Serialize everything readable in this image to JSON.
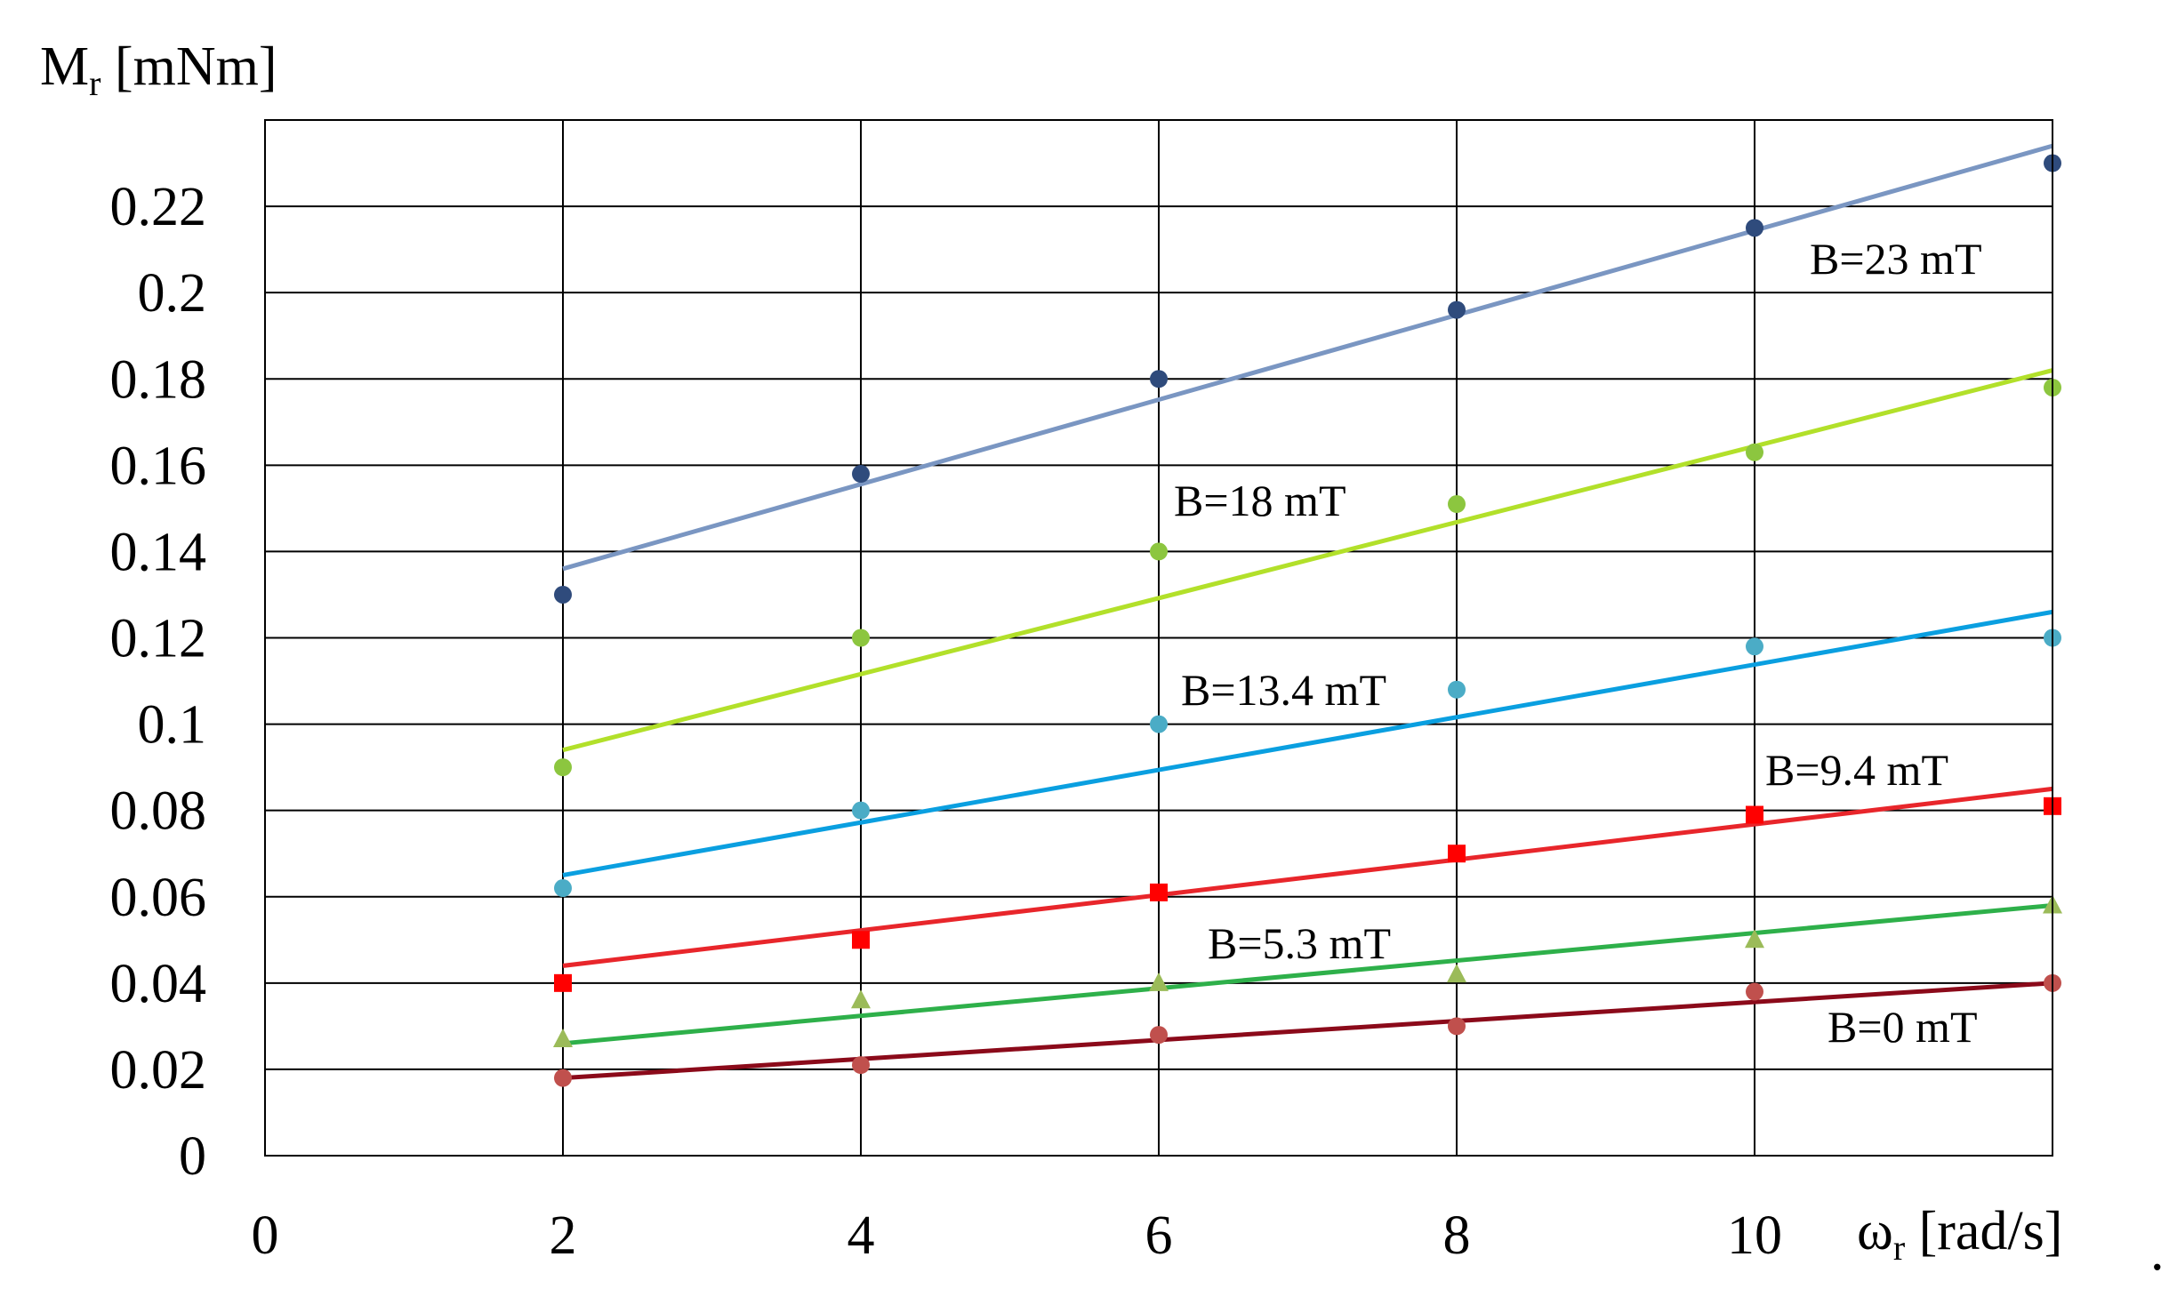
{
  "chart_data": {
    "type": "scatter",
    "xlabel": "ωr [rad/s]",
    "ylabel": "Mr [mNm]",
    "xlim": [
      0,
      12
    ],
    "ylim": [
      0,
      0.24
    ],
    "xticks": [
      0,
      2,
      4,
      6,
      8,
      10
    ],
    "yticks": [
      0,
      0.02,
      0.04,
      0.06,
      0.08,
      0.1,
      0.12,
      0.14,
      0.16,
      0.18,
      0.2,
      0.22
    ],
    "grid": true,
    "trailing_mark": ".",
    "series": [
      {
        "name": "B=23 mT",
        "marker_color": "#2f4b7c",
        "line_color": "#7a96c2",
        "marker": "circle",
        "x": [
          2,
          4,
          6,
          8,
          10,
          12
        ],
        "y": [
          0.13,
          0.158,
          0.18,
          0.196,
          0.215,
          0.23
        ],
        "fit": [
          [
            2,
            0.136
          ],
          [
            12,
            0.234
          ]
        ]
      },
      {
        "name": "B=18 mT",
        "marker_color": "#8cc63f",
        "line_color": "#b2e02a",
        "marker": "circle",
        "x": [
          2,
          4,
          6,
          8,
          10,
          12
        ],
        "y": [
          0.09,
          0.12,
          0.14,
          0.151,
          0.163,
          0.178
        ],
        "fit": [
          [
            2,
            0.094
          ],
          [
            12,
            0.182
          ]
        ]
      },
      {
        "name": "B=13.4 mT",
        "marker_color": "#4bacc6",
        "line_color": "#0a9fe0",
        "marker": "circle",
        "x": [
          2,
          4,
          6,
          8,
          10,
          12
        ],
        "y": [
          0.062,
          0.08,
          0.1,
          0.108,
          0.118,
          0.12
        ],
        "fit": [
          [
            2,
            0.065
          ],
          [
            12,
            0.126
          ]
        ]
      },
      {
        "name": "B=9.4 mT",
        "marker_color": "#ff0000",
        "line_color": "#e8262b",
        "marker": "square",
        "x": [
          2,
          4,
          6,
          8,
          10,
          12
        ],
        "y": [
          0.04,
          0.05,
          0.061,
          0.07,
          0.079,
          0.081
        ],
        "fit": [
          [
            2,
            0.044
          ],
          [
            12,
            0.085
          ]
        ]
      },
      {
        "name": "B=5.3 mT",
        "marker_color": "#9bbb59",
        "line_color": "#2eb04a",
        "marker": "triangle",
        "x": [
          2,
          4,
          6,
          8,
          10,
          12
        ],
        "y": [
          0.027,
          0.036,
          0.04,
          0.042,
          0.05,
          0.058
        ],
        "fit": [
          [
            2,
            0.026
          ],
          [
            12,
            0.058
          ]
        ]
      },
      {
        "name": "B=0 mT",
        "marker_color": "#c0504d",
        "line_color": "#8b0a1a",
        "marker": "circle",
        "x": [
          2,
          4,
          6,
          8,
          10,
          12
        ],
        "y": [
          0.018,
          0.021,
          0.028,
          0.03,
          0.038,
          0.04
        ],
        "fit": [
          [
            2,
            0.018
          ],
          [
            12,
            0.04
          ]
        ]
      }
    ]
  }
}
